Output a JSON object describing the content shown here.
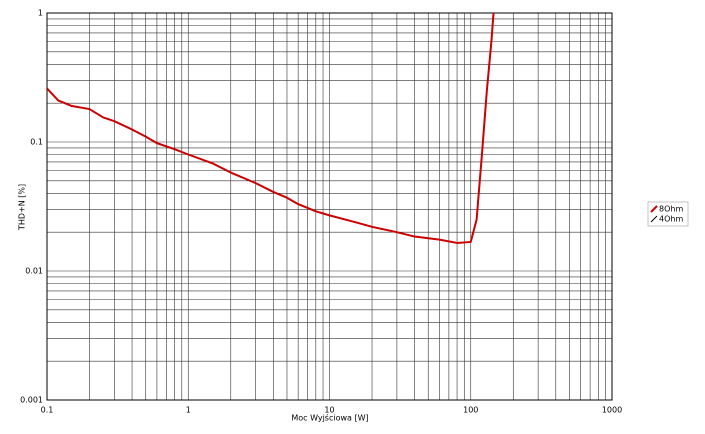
{
  "chart_data": {
    "type": "line",
    "x_label": "Moc Wyjściowa [W]",
    "y_label": "THD+N [%]",
    "x": [
      0.1,
      0.12,
      0.15,
      0.2,
      0.25,
      0.3,
      0.4,
      0.5,
      0.6,
      0.8,
      1,
      1.5,
      2,
      3,
      4,
      5,
      6,
      8,
      10,
      15,
      20,
      30,
      40,
      60,
      80,
      100,
      110,
      120,
      130,
      140,
      145
    ],
    "series": [
      {
        "name": "8Ohm",
        "color": "#cc0000",
        "values": [
          0.26,
          0.21,
          0.19,
          0.18,
          0.155,
          0.145,
          0.125,
          0.11,
          0.098,
          0.088,
          0.08,
          0.068,
          0.058,
          0.048,
          0.041,
          0.037,
          0.033,
          0.029,
          0.027,
          0.024,
          0.022,
          0.02,
          0.0185,
          0.0175,
          0.0165,
          0.0168,
          0.025,
          0.08,
          0.25,
          0.6,
          1
        ]
      },
      {
        "name": "4Ohm",
        "color": "#000000",
        "values": [
          null,
          null,
          null,
          null,
          null,
          null,
          null,
          null,
          null,
          null,
          null,
          null,
          null,
          null,
          null,
          null,
          null,
          null,
          null,
          null,
          null,
          null,
          null,
          null,
          null,
          null,
          null,
          null,
          null,
          null,
          null
        ]
      }
    ],
    "xlim": [
      0.1,
      1000
    ],
    "ylim": [
      0.001,
      1
    ],
    "xticks": [
      0.1,
      1,
      10,
      100,
      1000
    ],
    "yticks": [
      0.001,
      0.01,
      0.1,
      1
    ],
    "log_x": true,
    "log_y": true,
    "grid": true,
    "minor_grid": true,
    "legend": "right"
  }
}
